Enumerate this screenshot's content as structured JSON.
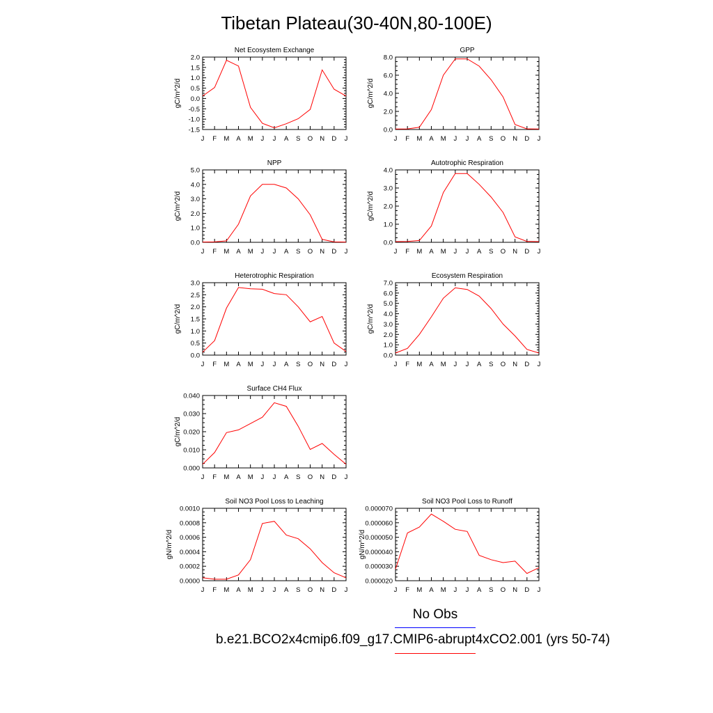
{
  "title": "Tibetan Plateau(30-40N,80-100E)",
  "legend": {
    "obs_label": "No Obs",
    "obs_color": "#0000ff",
    "run_label": "b.e21.BCO2x4cmip6.f09_g17.CMIP6-abrupt4xCO2.001 (yrs 50-74)",
    "run_color": "#ff0000"
  },
  "months": [
    "J",
    "F",
    "M",
    "A",
    "M",
    "J",
    "J",
    "A",
    "S",
    "O",
    "N",
    "D",
    "J"
  ],
  "chart_data": [
    {
      "type": "line",
      "title": "Net Ecosystem Exchange",
      "ylabel": "gC/m^2/d",
      "ylim": [
        -1.5,
        2.0
      ],
      "yticks": [
        "2.0",
        "1.5",
        "1.0",
        "0.5",
        "0.0",
        "-0.5",
        "-1.0",
        "-1.5"
      ],
      "ytick_values": [
        2.0,
        1.5,
        1.0,
        0.5,
        0.0,
        -0.5,
        -1.0,
        -1.5
      ],
      "values": [
        0.12,
        0.53,
        1.85,
        1.57,
        -0.43,
        -1.2,
        -1.42,
        -1.22,
        -0.98,
        -0.53,
        1.38,
        0.45,
        0.12
      ]
    },
    {
      "type": "line",
      "title": "GPP",
      "ylabel": "gC/m^2/d",
      "ylim": [
        0,
        8
      ],
      "yticks": [
        "8.0",
        "6.0",
        "4.0",
        "2.0",
        "0.0"
      ],
      "ytick_values": [
        8,
        6,
        4,
        2,
        0
      ],
      "values": [
        0.05,
        0.07,
        0.25,
        2.2,
        6.0,
        7.8,
        7.8,
        7.0,
        5.5,
        3.6,
        0.55,
        0.07,
        0.05
      ]
    },
    {
      "type": "line",
      "title": "NPP",
      "ylabel": "gC/m^2/d",
      "ylim": [
        0,
        5
      ],
      "yticks": [
        "5.0",
        "4.0",
        "3.0",
        "2.0",
        "1.0",
        "0.0"
      ],
      "ytick_values": [
        5,
        4,
        3,
        2,
        1,
        0
      ],
      "values": [
        0.02,
        0.03,
        0.1,
        1.25,
        3.2,
        4.0,
        4.0,
        3.75,
        3.0,
        1.9,
        0.2,
        0.03,
        0.02
      ]
    },
    {
      "type": "line",
      "title": "Autotrophic Respiration",
      "ylabel": "gC/m^2/d",
      "ylim": [
        0,
        4
      ],
      "yticks": [
        "4.0",
        "3.0",
        "2.0",
        "1.0",
        "0.0"
      ],
      "ytick_values": [
        4,
        3,
        2,
        1,
        0
      ],
      "values": [
        0.04,
        0.05,
        0.1,
        0.9,
        2.75,
        3.8,
        3.8,
        3.2,
        2.5,
        1.65,
        0.3,
        0.05,
        0.04
      ]
    },
    {
      "type": "line",
      "title": "Heterotrophic Respiration",
      "ylabel": "gC/m^2/d",
      "ylim": [
        0,
        3
      ],
      "yticks": [
        "3.0",
        "2.5",
        "2.0",
        "1.5",
        "1.0",
        "0.5",
        "0.0"
      ],
      "ytick_values": [
        3.0,
        2.5,
        2.0,
        1.5,
        1.0,
        0.5,
        0.0
      ],
      "values": [
        0.12,
        0.6,
        1.95,
        2.8,
        2.75,
        2.73,
        2.55,
        2.5,
        2.0,
        1.38,
        1.6,
        0.5,
        0.15
      ]
    },
    {
      "type": "line",
      "title": "Ecosystem Respiration",
      "ylabel": "gC/m^2/d",
      "ylim": [
        0,
        7
      ],
      "yticks": [
        "7.0",
        "6.0",
        "5.0",
        "4.0",
        "3.0",
        "2.0",
        "1.0",
        "0.0"
      ],
      "ytick_values": [
        7,
        6,
        5,
        4,
        3,
        2,
        1,
        0
      ],
      "values": [
        0.2,
        0.65,
        2.0,
        3.7,
        5.5,
        6.5,
        6.35,
        5.7,
        4.5,
        3.0,
        1.85,
        0.55,
        0.2
      ]
    },
    {
      "type": "line",
      "title": "Surface CH4 Flux",
      "ylabel": "gC/m^2/d",
      "ylim": [
        0,
        0.04
      ],
      "yticks": [
        "0.040",
        "0.030",
        "0.020",
        "0.010",
        "0.000"
      ],
      "ytick_values": [
        0.04,
        0.03,
        0.02,
        0.01,
        0.0
      ],
      "values": [
        0.002,
        0.0085,
        0.0195,
        0.021,
        0.0245,
        0.028,
        0.036,
        0.034,
        0.023,
        0.0102,
        0.0135,
        0.0075,
        0.002
      ]
    },
    {
      "type": "line",
      "title": "Soil NO3 Pool Loss to Leaching",
      "ylabel": "gN/m^2/d",
      "ylim": [
        0,
        0.001
      ],
      "yticks": [
        "0.0010",
        "0.0008",
        "0.0006",
        "0.0004",
        "0.0002",
        "0.0000"
      ],
      "ytick_values": [
        0.001,
        0.0008,
        0.0006,
        0.0004,
        0.0002,
        0.0
      ],
      "values": [
        4e-05,
        2e-05,
        2e-05,
        8e-05,
        0.00029,
        0.00079,
        0.00082,
        0.00063,
        0.00058,
        0.00044,
        0.00025,
        0.00011,
        4e-05
      ]
    },
    {
      "type": "line",
      "title": "Soil NO3 Pool Loss to Runoff",
      "ylabel": "gN/m^2/d",
      "ylim": [
        2e-05,
        7e-05
      ],
      "yticks": [
        "0.000070",
        "0.000060",
        "0.000050",
        "0.000040",
        "0.000030",
        "0.000020"
      ],
      "ytick_values": [
        7e-05,
        6e-05,
        5e-05,
        4e-05,
        3e-05,
        2e-05
      ],
      "values": [
        2.8e-05,
        5.3e-05,
        5.7e-05,
        6.6e-05,
        6.1e-05,
        5.55e-05,
        5.4e-05,
        3.75e-05,
        3.45e-05,
        3.25e-05,
        3.35e-05,
        2.5e-05,
        2.9e-05
      ]
    }
  ]
}
